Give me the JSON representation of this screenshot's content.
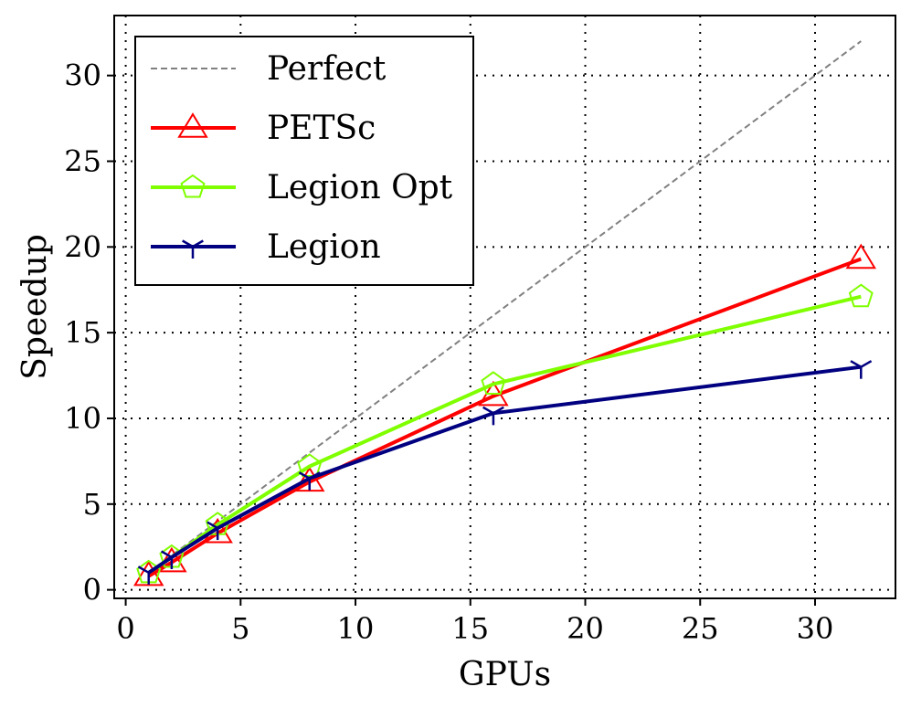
{
  "chart_data": {
    "type": "line",
    "xlabel": "GPUs",
    "ylabel": "Speedup",
    "xlim": [
      -0.5,
      33.5
    ],
    "ylim": [
      -0.5,
      33.5
    ],
    "xticks": [
      0,
      5,
      10,
      15,
      20,
      25,
      30
    ],
    "yticks": [
      0,
      5,
      10,
      15,
      20,
      25,
      30
    ],
    "grid": true,
    "legend_position": "top-left",
    "series": [
      {
        "name": "Perfect",
        "color": "#808080",
        "style": "dashed",
        "marker": "none",
        "x": [
          1,
          32
        ],
        "y": [
          1,
          32
        ]
      },
      {
        "name": "PETSc",
        "color": "#ff0000",
        "style": "solid",
        "marker": "triangle",
        "x": [
          1,
          2,
          4,
          8,
          16,
          32
        ],
        "y": [
          0.8,
          1.6,
          3.3,
          6.3,
          11.3,
          19.3
        ]
      },
      {
        "name": "Legion Opt",
        "color": "#7fff00",
        "style": "solid",
        "marker": "pentagon",
        "x": [
          1,
          2,
          4,
          8,
          16,
          32
        ],
        "y": [
          1.0,
          1.9,
          3.8,
          7.2,
          12.0,
          17.1
        ]
      },
      {
        "name": "Legion",
        "color": "#000080",
        "style": "solid",
        "marker": "tri_down",
        "x": [
          1,
          2,
          4,
          8,
          16,
          32
        ],
        "y": [
          1.0,
          1.9,
          3.6,
          6.5,
          10.3,
          13.0
        ]
      }
    ]
  }
}
